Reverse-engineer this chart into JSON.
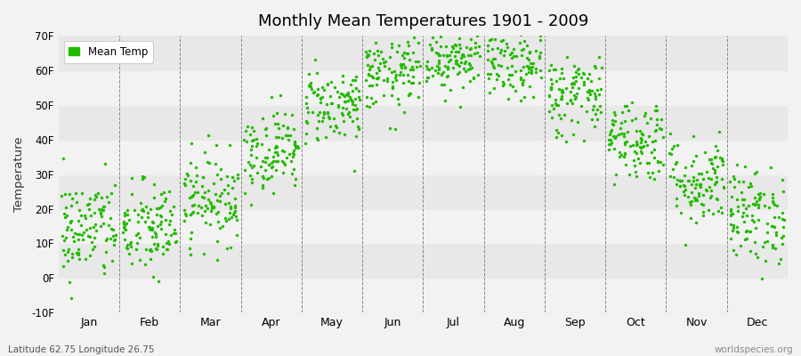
{
  "title": "Monthly Mean Temperatures 1901 - 2009",
  "ylabel": "Temperature",
  "xlabel_labels": [
    "Jan",
    "Feb",
    "Mar",
    "Apr",
    "May",
    "Jun",
    "Jul",
    "Aug",
    "Sep",
    "Oct",
    "Nov",
    "Dec"
  ],
  "ylim": [
    -10,
    70
  ],
  "yticks": [
    -10,
    0,
    10,
    20,
    30,
    40,
    50,
    60,
    70
  ],
  "ytick_labels": [
    "-10F",
    "0F",
    "10F",
    "20F",
    "30F",
    "40F",
    "50F",
    "60F",
    "70F"
  ],
  "dot_color": "#22bb00",
  "bg_color": "#f2f2f2",
  "band_colors": [
    "#f2f2f2",
    "#e8e8e8"
  ],
  "legend_label": "Mean Temp",
  "bottom_left_text": "Latitude 62.75 Longitude 26.75",
  "bottom_right_text": "worldspecies.org",
  "n_years": 109,
  "month_means_f": [
    14.0,
    14.0,
    23.0,
    37.0,
    50.0,
    59.0,
    64.0,
    62.0,
    53.0,
    40.0,
    28.0,
    18.0
  ],
  "month_stds_f": [
    7.5,
    7.0,
    6.5,
    6.0,
    5.5,
    5.5,
    5.0,
    5.5,
    6.0,
    6.0,
    6.5,
    7.0
  ],
  "seed": 42,
  "dpi": 100
}
